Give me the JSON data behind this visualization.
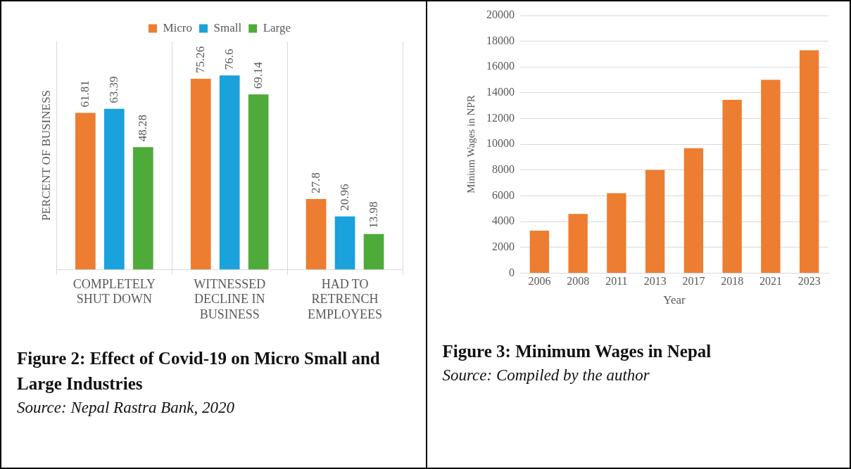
{
  "chart_data": [
    {
      "type": "bar",
      "title": "Figure 2: Effect of Covid-19 on Micro Small and Large Industries",
      "ylabel": "PERCENT OF BUSINESS",
      "categories": [
        "COMPLETELY SHUT DOWN",
        "WITNESSED DECLINE IN BUSINESS",
        "HAD TO RETRENCH EMPLOYEES"
      ],
      "series": [
        {
          "name": "Micro",
          "color": "#ed7d31",
          "values": [
            61.81,
            75.26,
            27.8
          ]
        },
        {
          "name": "Small",
          "color": "#1ba1dc",
          "values": [
            63.39,
            76.6,
            20.96
          ]
        },
        {
          "name": "Large",
          "color": "#4eab3a",
          "values": [
            48.28,
            69.14,
            13.98
          ]
        }
      ],
      "data_labels": true,
      "legend": "top",
      "grid": "x",
      "tick_labels": "x",
      "annotations": [
        "Source: Nepal Rastra Bank, 2020"
      ]
    },
    {
      "type": "bar",
      "title": "Figure 3: Minimum Wages in Nepal",
      "xlabel": "Year",
      "ylabel": "Minium Wages in NPR",
      "categories": [
        "2006",
        "2008",
        "2011",
        "2013",
        "2017",
        "2018",
        "2021",
        "2023"
      ],
      "values": [
        3300,
        4600,
        6200,
        8000,
        9700,
        13450,
        15000,
        17300
      ],
      "color": "#ed7d31",
      "ylim": [
        0,
        20000
      ],
      "yticks": [
        0,
        2000,
        4000,
        6000,
        8000,
        10000,
        12000,
        14000,
        16000,
        18000,
        20000
      ],
      "grid": "y",
      "annotations": [
        "Source: Compiled by the author"
      ]
    }
  ]
}
